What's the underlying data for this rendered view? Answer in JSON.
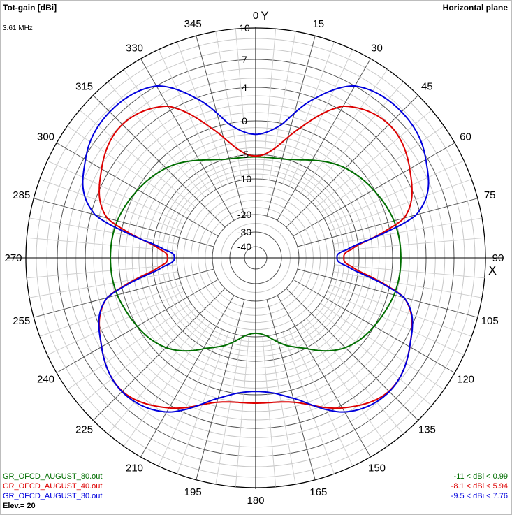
{
  "header": {
    "title": "Tot-gain [dBi]",
    "subtitle": "3.61 MHz",
    "plane": "Horizontal plane"
  },
  "axes": {
    "y_label": "Y",
    "x_label": "X"
  },
  "footer": {
    "elevation": "Elev.= 20"
  },
  "chart_data": {
    "type": "polar",
    "angle_ticks": [
      "0",
      "15",
      "30",
      "45",
      "60",
      "75",
      "90",
      "105",
      "120",
      "135",
      "150",
      "165",
      "180",
      "195",
      "210",
      "225",
      "240",
      "255",
      "270",
      "285",
      "300",
      "315",
      "330",
      "345"
    ],
    "radial_ticks": [
      "10",
      "7",
      "4",
      "0",
      "-5",
      "-10",
      "-20",
      "-30",
      "-40"
    ],
    "radial_tick_values": [
      10,
      7,
      4,
      0,
      -5,
      -10,
      -20,
      -30,
      -40
    ],
    "radial_range_dbi": [
      -40,
      10
    ],
    "series": [
      {
        "name": "GR_OFCD_AUGUST_80.out",
        "color": "#006e00",
        "range_label": "-11 < dBi < 0.99",
        "angles_deg": [
          0,
          20,
          45,
          70,
          90,
          110,
          135,
          160,
          180,
          200,
          225,
          250,
          270,
          290,
          315,
          340
        ],
        "gain_dbi": [
          -5.5,
          -4.8,
          -1.5,
          0.5,
          0.99,
          0.5,
          -1.5,
          -7,
          -11,
          -7,
          -1.5,
          0.5,
          0.99,
          0.5,
          -1.5,
          -4.8
        ]
      },
      {
        "name": "GR_OFCD_AUGUST_40.out",
        "color": "#dd0000",
        "range_label": "-8.1 < dBi < 5.94",
        "angles_deg": [
          0,
          10,
          20,
          30,
          45,
          60,
          75,
          85,
          90,
          95,
          105,
          120,
          135,
          150,
          165,
          180,
          195,
          210,
          225,
          240,
          255,
          265,
          270,
          275,
          285,
          300,
          315,
          330,
          340,
          350
        ],
        "gain_dbi": [
          -5.3,
          -3.8,
          0.5,
          4.5,
          5.94,
          4.8,
          2.0,
          -6.5,
          -8.1,
          -6.5,
          2.0,
          4.8,
          5.94,
          4.3,
          1.5,
          1.0,
          1.5,
          4.3,
          5.94,
          4.8,
          2.0,
          -6.5,
          -8.1,
          -6.5,
          2.0,
          4.8,
          5.94,
          4.5,
          0.5,
          -3.8
        ]
      },
      {
        "name": "GR_OFCD_AUGUST_30.out",
        "color": "#0000dd",
        "range_label": "-9.5 < dBi < 7.76",
        "angles_deg": [
          0,
          10,
          20,
          30,
          45,
          60,
          75,
          85,
          90,
          95,
          105,
          120,
          135,
          150,
          165,
          180,
          195,
          210,
          225,
          240,
          255,
          265,
          270,
          275,
          285,
          300,
          315,
          330,
          340,
          350
        ],
        "gain_dbi": [
          -2.0,
          -0.5,
          3.8,
          7.0,
          7.76,
          6.8,
          3.5,
          -7.5,
          -9.5,
          -7.5,
          2.0,
          4.8,
          6.0,
          4.8,
          1.0,
          -0.5,
          1.0,
          4.8,
          6.0,
          4.8,
          2.0,
          -7.5,
          -9.5,
          -7.5,
          3.5,
          6.8,
          7.76,
          7.0,
          3.8,
          -0.5
        ]
      }
    ]
  }
}
